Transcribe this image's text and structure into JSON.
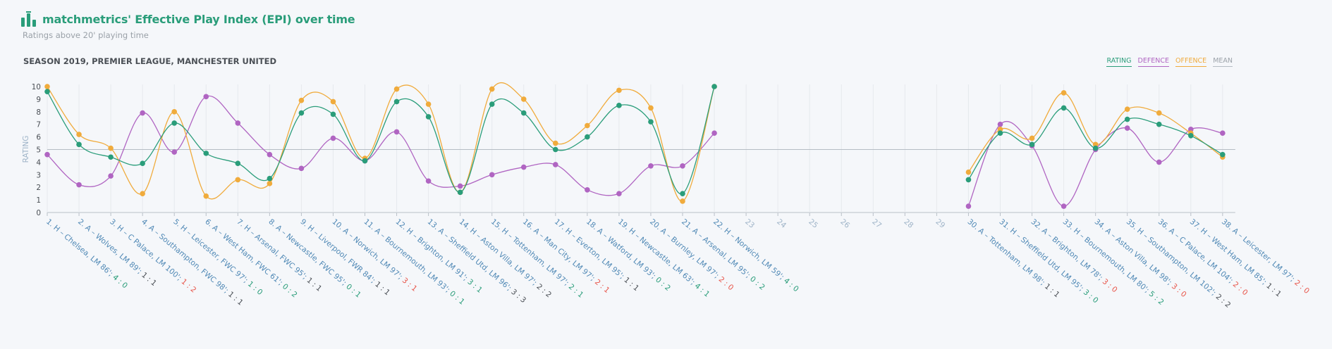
{
  "header": {
    "title": "matchmetrics' Effective Play Index (EPI) over time",
    "subtitle": "Ratings above 20' playing time",
    "icon": "bar-chart-icon"
  },
  "season_label": "SEASON 2019, PREMIER LEAGUE, MANCHESTER UNITED",
  "colors": {
    "rating": "#2a9d7a",
    "defence": "#b065c2",
    "offence": "#f0ab3c",
    "mean": "#b5bcc4",
    "win": "#2a9d7a",
    "loss": "#e8564b",
    "draw": "#4a4f55",
    "match_label": "#4f88b5"
  },
  "chart_data": {
    "type": "line",
    "ylabel": "RATING",
    "ylim": [
      0,
      10
    ],
    "yticks": [
      0,
      1,
      2,
      3,
      4,
      5,
      6,
      7,
      8,
      9,
      10
    ],
    "mean": 5,
    "legend": [
      {
        "key": "rating",
        "label": "RATING"
      },
      {
        "key": "defence",
        "label": "DEFENCE"
      },
      {
        "key": "offence",
        "label": "OFFENCE"
      },
      {
        "key": "mean",
        "label": "MEAN"
      }
    ],
    "legend_position": "top-right",
    "matches": [
      {
        "n": 1,
        "label": "1. H – Chelsea, LM 86'; ",
        "score": "4 : 0",
        "result": "win"
      },
      {
        "n": 2,
        "label": "2. A – Wolves, LM 89'; ",
        "score": "1 : 1",
        "result": "draw"
      },
      {
        "n": 3,
        "label": "3. H – C Palace, LM 100'; ",
        "score": "1 : 2",
        "result": "loss"
      },
      {
        "n": 4,
        "label": "4. A – Southampton, FWC 98'; ",
        "score": "1 : 1",
        "result": "draw"
      },
      {
        "n": 5,
        "label": "5. H – Leicester, FWC 97'; ",
        "score": "1 : 0",
        "result": "win"
      },
      {
        "n": 6,
        "label": "6. A – West Ham, FWC 61'; ",
        "score": "0 : 2",
        "result": "win"
      },
      {
        "n": 7,
        "label": "7. H – Arsenal, FWC 95'; ",
        "score": "1 : 1",
        "result": "draw"
      },
      {
        "n": 8,
        "label": "8. A – Newcastle, FWC 95'; ",
        "score": "0 : 1",
        "result": "win"
      },
      {
        "n": 9,
        "label": "9. H – Liverpool, FWR 84'; ",
        "score": "1 : 1",
        "result": "draw"
      },
      {
        "n": 10,
        "label": "10. A – Norwich, LM 97'; ",
        "score": "3 : 1",
        "result": "loss"
      },
      {
        "n": 11,
        "label": "11. A – Bournemouth, LM 93'; ",
        "score": "0 : 1",
        "result": "win"
      },
      {
        "n": 12,
        "label": "12. H – Brighton, LM 91'; ",
        "score": "3 : 1",
        "result": "win"
      },
      {
        "n": 13,
        "label": "13. A – Sheffield Utd, LM 96'; ",
        "score": "3 : 3",
        "result": "draw"
      },
      {
        "n": 14,
        "label": "14. H – Aston Villa, LM 97'; ",
        "score": "2 : 2",
        "result": "draw"
      },
      {
        "n": 15,
        "label": "15. H – Tottenham, LM 97'; ",
        "score": "2 : 1",
        "result": "win"
      },
      {
        "n": 16,
        "label": "16. A – Man City, LM 97'; ",
        "score": "2 : 1",
        "result": "loss"
      },
      {
        "n": 17,
        "label": "17. H – Everton, LM 95'; ",
        "score": "1 : 1",
        "result": "draw"
      },
      {
        "n": 18,
        "label": "18. A – Watford, LM 93'; ",
        "score": "0 : 2",
        "result": "win"
      },
      {
        "n": 19,
        "label": "19. H – Newcastle, LM 63'; ",
        "score": "4 : 1",
        "result": "win"
      },
      {
        "n": 20,
        "label": "20. A – Burnley, LM 97'; ",
        "score": "2 : 0",
        "result": "loss"
      },
      {
        "n": 21,
        "label": "21. A – Arsenal, LM 95'; ",
        "score": "0 : 2",
        "result": "win"
      },
      {
        "n": 22,
        "label": "22. H – Norwich, LM 59'; ",
        "score": "4 : 0",
        "result": "win"
      },
      {
        "n": 23,
        "label": "23",
        "score": "",
        "result": ""
      },
      {
        "n": 24,
        "label": "24",
        "score": "",
        "result": ""
      },
      {
        "n": 25,
        "label": "25",
        "score": "",
        "result": ""
      },
      {
        "n": 26,
        "label": "26",
        "score": "",
        "result": ""
      },
      {
        "n": 27,
        "label": "27",
        "score": "",
        "result": ""
      },
      {
        "n": 28,
        "label": "28",
        "score": "",
        "result": ""
      },
      {
        "n": 29,
        "label": "29",
        "score": "",
        "result": ""
      },
      {
        "n": 30,
        "label": "30. A – Tottenham, LM 98'; ",
        "score": "1 : 1",
        "result": "draw"
      },
      {
        "n": 31,
        "label": "31. H – Sheffield Utd, LM 95'; ",
        "score": "3 : 0",
        "result": "win"
      },
      {
        "n": 32,
        "label": "32. A – Brighton, LM 78'; ",
        "score": "3 : 0",
        "result": "loss"
      },
      {
        "n": 33,
        "label": "33. H – Bournemouth, LM 80'; ",
        "score": "5 : 2",
        "result": "win"
      },
      {
        "n": 34,
        "label": "34. A – Aston Villa, LM 98'; ",
        "score": "3 : 0",
        "result": "loss"
      },
      {
        "n": 35,
        "label": "35. H – Southampton, LM 102'; ",
        "score": "2 : 2",
        "result": "draw"
      },
      {
        "n": 36,
        "label": "36. A – C Palace, LM 104'; ",
        "score": "2 : 0",
        "result": "loss"
      },
      {
        "n": 37,
        "label": "37. H – West Ham, LM 85'; ",
        "score": "1 : 1",
        "result": "draw"
      },
      {
        "n": 38,
        "label": "38. A – Leicester, LM 97'; ",
        "score": "2 : 0",
        "result": "loss"
      }
    ],
    "series": [
      {
        "key": "rating",
        "values": [
          9.6,
          5.4,
          4.4,
          3.9,
          7.1,
          4.7,
          3.9,
          2.7,
          7.9,
          7.8,
          4.1,
          8.8,
          7.6,
          1.6,
          8.6,
          7.9,
          5.0,
          6.0,
          8.5,
          7.2,
          1.5,
          10.0,
          null,
          null,
          null,
          null,
          null,
          null,
          null,
          2.6,
          6.3,
          5.4,
          8.3,
          5.1,
          7.4,
          7.0,
          6.1,
          4.6
        ]
      },
      {
        "key": "defence",
        "values": [
          4.6,
          2.2,
          2.9,
          7.9,
          4.8,
          9.2,
          7.1,
          4.6,
          3.5,
          5.9,
          4.1,
          6.4,
          2.5,
          2.1,
          3.0,
          3.6,
          3.8,
          1.8,
          1.5,
          3.7,
          3.7,
          6.3,
          null,
          null,
          null,
          null,
          null,
          null,
          null,
          0.5,
          7.0,
          5.3,
          0.5,
          5.0,
          6.7,
          4.0,
          6.6,
          6.3
        ]
      },
      {
        "key": "offence",
        "values": [
          10.0,
          6.2,
          5.1,
          1.5,
          8.0,
          1.3,
          2.6,
          2.3,
          8.9,
          8.8,
          4.3,
          9.8,
          8.6,
          1.6,
          9.8,
          9.0,
          5.5,
          6.9,
          9.7,
          8.3,
          0.9,
          10.0,
          null,
          null,
          null,
          null,
          null,
          null,
          null,
          3.2,
          6.6,
          5.9,
          9.5,
          5.4,
          8.2,
          7.9,
          6.3,
          4.4
        ]
      }
    ]
  }
}
